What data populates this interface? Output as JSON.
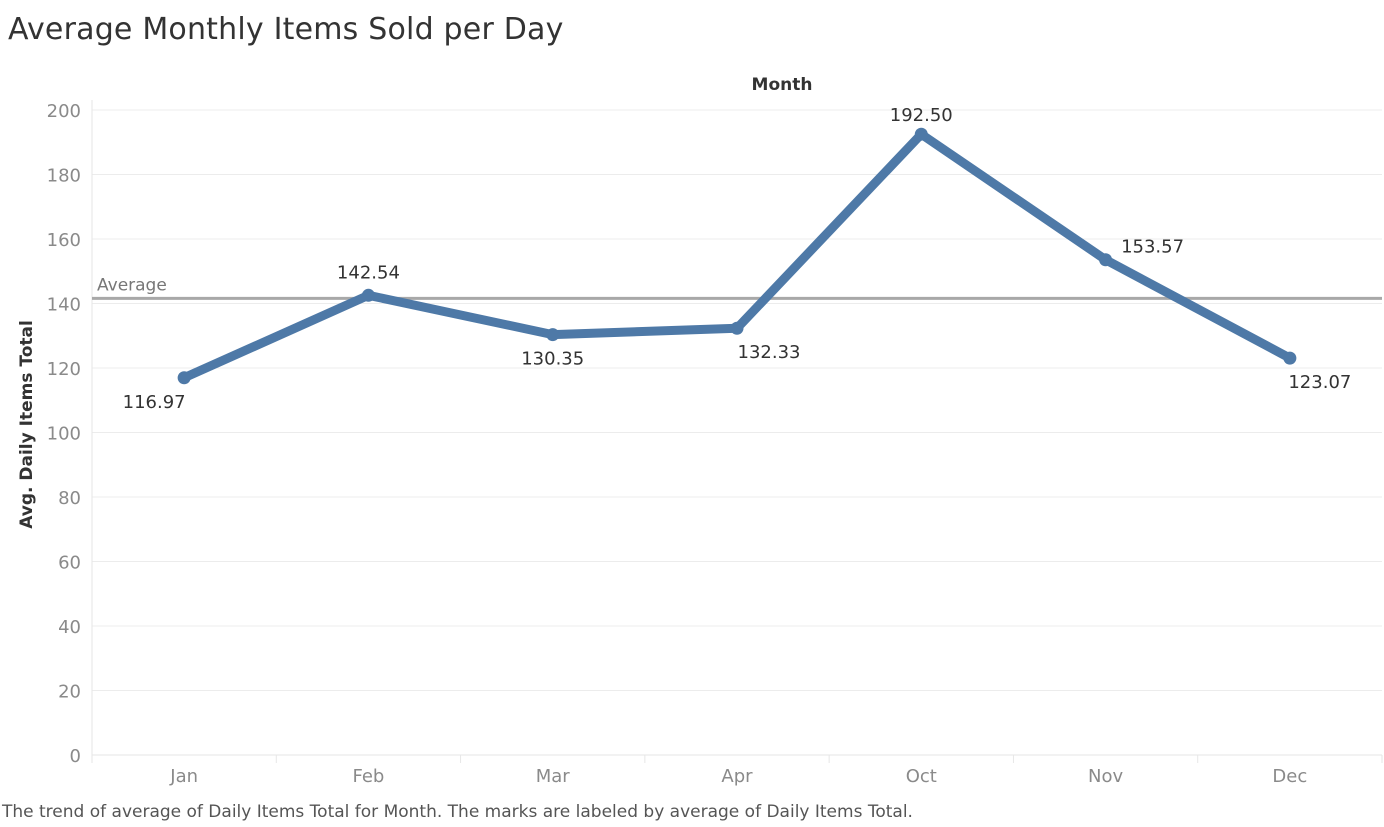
{
  "title": "Average Monthly Items Sold per Day",
  "caption": "The trend of average of Daily Items Total for Month.  The marks are labeled by average of Daily Items Total.",
  "chart_data": {
    "type": "line",
    "xlabel": "Month",
    "ylabel": "Avg. Daily Items Total",
    "categories": [
      "Jan",
      "Feb",
      "Mar",
      "Apr",
      "Oct",
      "Nov",
      "Dec"
    ],
    "series": [
      {
        "values": [
          116.97,
          142.54,
          130.35,
          132.33,
          192.5,
          153.57,
          123.07
        ],
        "labels": [
          "116.97",
          "142.54",
          "130.35",
          "132.33",
          "192.50",
          "153.57",
          "123.07"
        ],
        "color": "#4e79a7"
      }
    ],
    "ylim": [
      0,
      200
    ],
    "yticks": [
      "0",
      "20",
      "40",
      "60",
      "80",
      "100",
      "120",
      "140",
      "160",
      "180",
      "200"
    ],
    "grid": true,
    "reference_line": {
      "label": "Average",
      "value": 141.6,
      "color": "#a8a8a8"
    }
  }
}
